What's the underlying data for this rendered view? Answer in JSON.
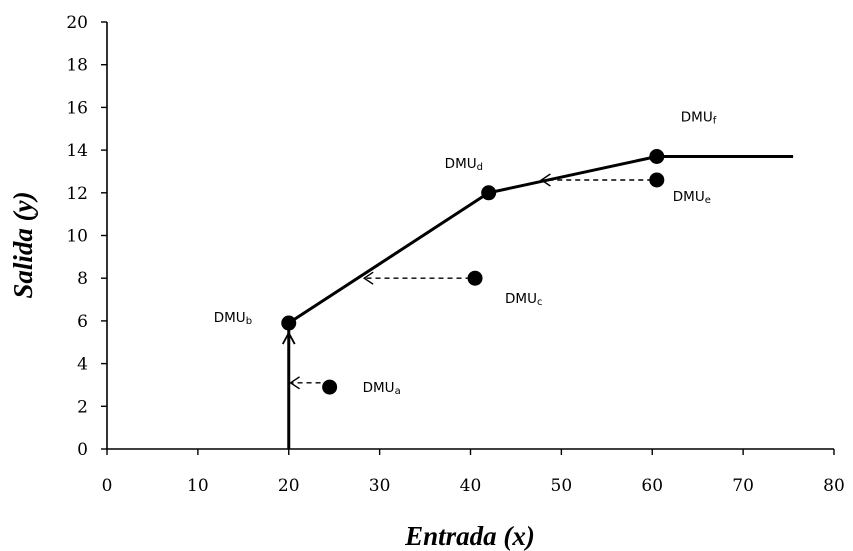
{
  "chart_data": {
    "type": "line",
    "xlabel": "Entrada (x)",
    "ylabel": "Salida (y)",
    "xlim": [
      0,
      80
    ],
    "ylim": [
      0,
      20
    ],
    "xticks": [
      0,
      10,
      20,
      30,
      40,
      50,
      60,
      70,
      80
    ],
    "yticks": [
      0,
      2,
      4,
      6,
      8,
      10,
      12,
      14,
      16,
      18,
      20
    ],
    "grid": false,
    "frontier": {
      "x": [
        20,
        20,
        42,
        60.5,
        75.5
      ],
      "y": [
        0,
        5.9,
        12,
        13.7,
        13.7
      ]
    },
    "points": [
      {
        "name": "DMU",
        "sub": "a",
        "x": 24.5,
        "y": 2.9
      },
      {
        "name": "DMU",
        "sub": "b",
        "x": 20,
        "y": 5.9
      },
      {
        "name": "DMU",
        "sub": "c",
        "x": 40.5,
        "y": 8
      },
      {
        "name": "DMU",
        "sub": "d",
        "x": 42,
        "y": 12
      },
      {
        "name": "DMU",
        "sub": "e",
        "x": 60.5,
        "y": 12.6
      },
      {
        "name": "DMU",
        "sub": "f",
        "x": 60.5,
        "y": 13.7
      }
    ],
    "projections": [
      {
        "from": [
          23.5,
          3.1
        ],
        "to": [
          20.2,
          3.1
        ]
      },
      {
        "from": [
          40,
          8
        ],
        "to": [
          28.3,
          8
        ]
      },
      {
        "from": [
          60,
          12.6
        ],
        "to": [
          47.8,
          12.6
        ]
      }
    ]
  }
}
